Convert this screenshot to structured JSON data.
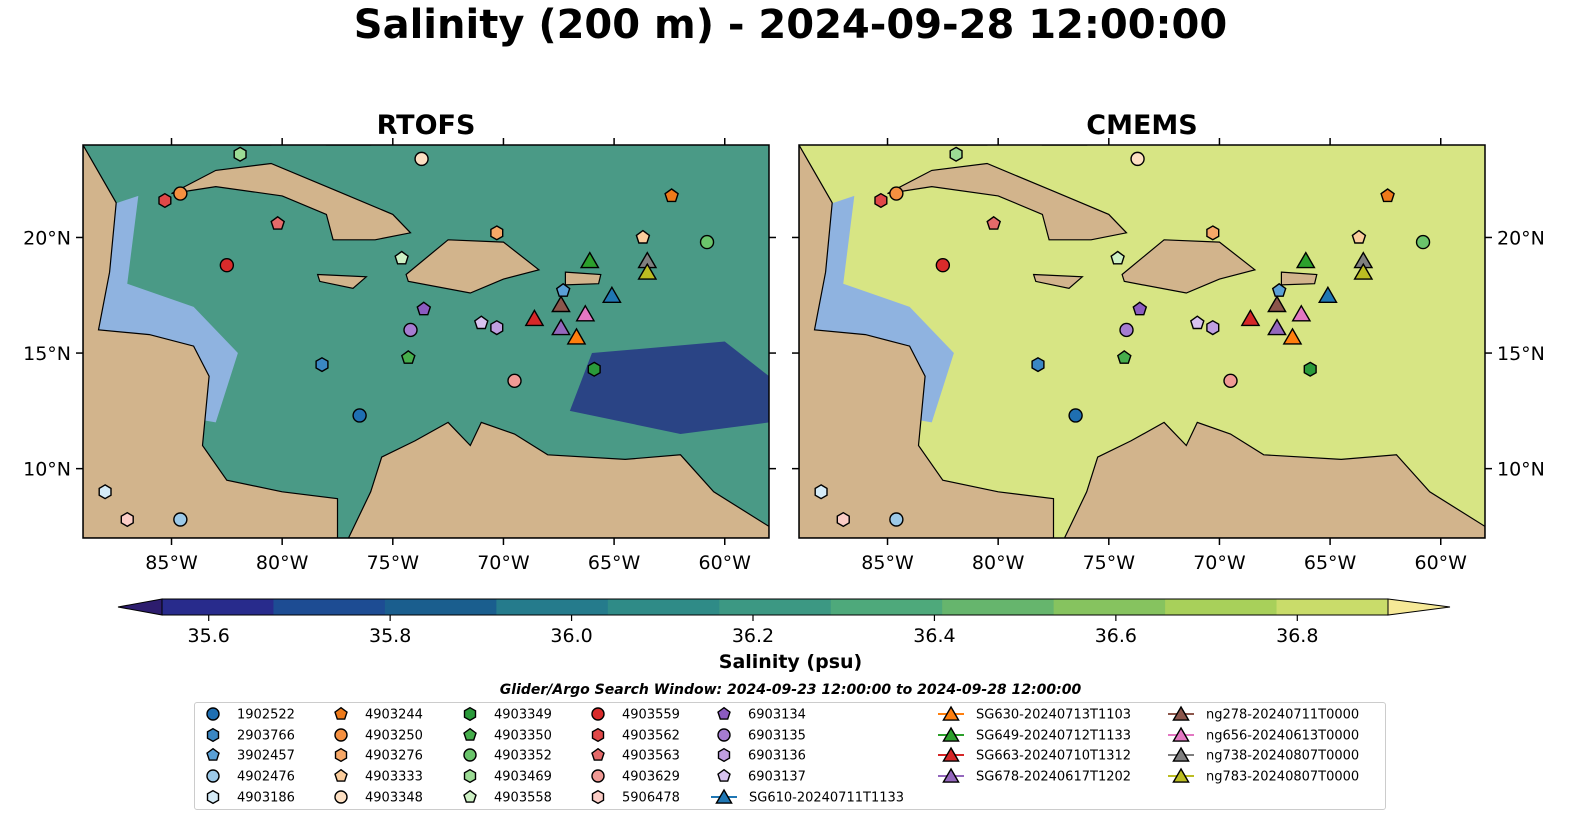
{
  "title": "Salinity (200 m) - 2024-09-28 12:00:00",
  "colorbar": {
    "label": "Salinity (psu)",
    "min": 35.5,
    "max": 36.9,
    "ticks": [
      "35.6",
      "35.8",
      "36.0",
      "36.2",
      "36.4",
      "36.6",
      "36.8"
    ],
    "colors": [
      "#2d1d6e",
      "#282b8c",
      "#1d4c93",
      "#1a5e8e",
      "#257b8c",
      "#2f8b87",
      "#3c9883",
      "#4ea97b",
      "#66b56d",
      "#86c35f",
      "#a8d05a",
      "#c9dc6a",
      "#f6e997"
    ]
  },
  "search_window": "Glider/Argo Search Window: 2024-09-23 12:00:00 to 2024-09-28 12:00:00",
  "chart_data": {
    "type": "map",
    "lon_range": [
      -89,
      -58
    ],
    "lat_range": [
      7,
      24
    ],
    "x_ticks": [
      "85°W",
      "80°W",
      "75°W",
      "70°W",
      "65°W",
      "60°W"
    ],
    "y_ticks": [
      "20°N",
      "15°N",
      "10°N"
    ],
    "panels": [
      {
        "title": "RTOFS",
        "ocean_color": "#4a9a86"
      },
      {
        "title": "CMEMS",
        "ocean_color": "#d7e584"
      }
    ],
    "argo_floats": [
      {
        "id": "1902522",
        "color": "#1f6fb2",
        "marker": "circle",
        "lon": -76.5,
        "lat": 12.3
      },
      {
        "id": "2903766",
        "color": "#3a87c3",
        "marker": "hexagon",
        "lon": -78.2,
        "lat": 14.5
      },
      {
        "id": "3902457",
        "color": "#5aa0d6",
        "marker": "pentagon",
        "lon": -67.3,
        "lat": 17.7
      },
      {
        "id": "4902476",
        "color": "#9cc9e8",
        "marker": "circle",
        "lon": -84.6,
        "lat": 7.8
      },
      {
        "id": "4903186",
        "color": "#d5ebf7",
        "marker": "hexagon",
        "lon": -88.0,
        "lat": 9.0
      },
      {
        "id": "4903244",
        "color": "#ee7a1a",
        "marker": "pentagon",
        "lon": -62.4,
        "lat": 21.8
      },
      {
        "id": "4903250",
        "color": "#f59040",
        "marker": "circle",
        "lon": -84.6,
        "lat": 21.9
      },
      {
        "id": "4903276",
        "color": "#f7a867",
        "marker": "hexagon",
        "lon": -70.3,
        "lat": 20.2
      },
      {
        "id": "4903333",
        "color": "#fbcd9c",
        "marker": "pentagon",
        "lon": -63.7,
        "lat": 20.0
      },
      {
        "id": "4903348",
        "color": "#fde0c3",
        "marker": "circle",
        "lon": -73.7,
        "lat": 23.4
      },
      {
        "id": "4903349",
        "color": "#2a9a3a",
        "marker": "hexagon",
        "lon": -65.9,
        "lat": 14.3
      },
      {
        "id": "4903350",
        "color": "#46ae4c",
        "marker": "pentagon",
        "lon": -74.3,
        "lat": 14.8
      },
      {
        "id": "4903352",
        "color": "#6ac46b",
        "marker": "circle",
        "lon": -60.8,
        "lat": 19.8
      },
      {
        "id": "4903469",
        "color": "#9cdb95",
        "marker": "hexagon",
        "lon": -81.9,
        "lat": 23.6
      },
      {
        "id": "4903558",
        "color": "#cdf0c4",
        "marker": "pentagon",
        "lon": -74.6,
        "lat": 19.1
      },
      {
        "id": "4903559",
        "color": "#d92b2b",
        "marker": "circle",
        "lon": -82.5,
        "lat": 18.8
      },
      {
        "id": "4903562",
        "color": "#e04848",
        "marker": "hexagon",
        "lon": -85.3,
        "lat": 21.6
      },
      {
        "id": "4903563",
        "color": "#e56a6a",
        "marker": "pentagon",
        "lon": -80.2,
        "lat": 20.6
      },
      {
        "id": "4903629",
        "color": "#f09a95",
        "marker": "circle",
        "lon": -69.5,
        "lat": 13.8
      },
      {
        "id": "5906478",
        "color": "#fbcdc6",
        "marker": "hexagon",
        "lon": -87.0,
        "lat": 7.8
      },
      {
        "id": "6903134",
        "color": "#8b5bc0",
        "marker": "pentagon",
        "lon": -73.6,
        "lat": 16.9
      },
      {
        "id": "6903135",
        "color": "#a57cd1",
        "marker": "circle",
        "lon": -74.2,
        "lat": 16.0
      },
      {
        "id": "6903136",
        "color": "#bf9fe0",
        "marker": "hexagon",
        "lon": -70.3,
        "lat": 16.1
      },
      {
        "id": "6903137",
        "color": "#d8c3ef",
        "marker": "pentagon",
        "lon": -71.0,
        "lat": 16.3
      }
    ],
    "gliders": [
      {
        "id": "SG610-20240711T1133",
        "color": "#1f77b4",
        "lon": -65.1,
        "lat": 17.5
      },
      {
        "id": "SG630-20240713T1103",
        "color": "#ff7f0e",
        "lon": -66.7,
        "lat": 15.7
      },
      {
        "id": "SG649-20240712T1133",
        "color": "#2ca02c",
        "lon": -66.1,
        "lat": 19.0
      },
      {
        "id": "SG663-20240710T1312",
        "color": "#d62728",
        "lon": -68.6,
        "lat": 16.5
      },
      {
        "id": "SG678-20240617T1202",
        "color": "#9467bd",
        "lon": -67.4,
        "lat": 16.1
      },
      {
        "id": "ng278-20240711T0000",
        "color": "#8c564b",
        "lon": -67.4,
        "lat": 17.1
      },
      {
        "id": "ng656-20240613T0000",
        "color": "#e377c2",
        "lon": -66.3,
        "lat": 16.7
      },
      {
        "id": "ng738-20240807T0000",
        "color": "#7f7f7f",
        "lon": -63.5,
        "lat": 19.0
      },
      {
        "id": "ng783-20240807T0000",
        "color": "#bcbd22",
        "lon": -63.5,
        "lat": 18.5
      }
    ]
  }
}
